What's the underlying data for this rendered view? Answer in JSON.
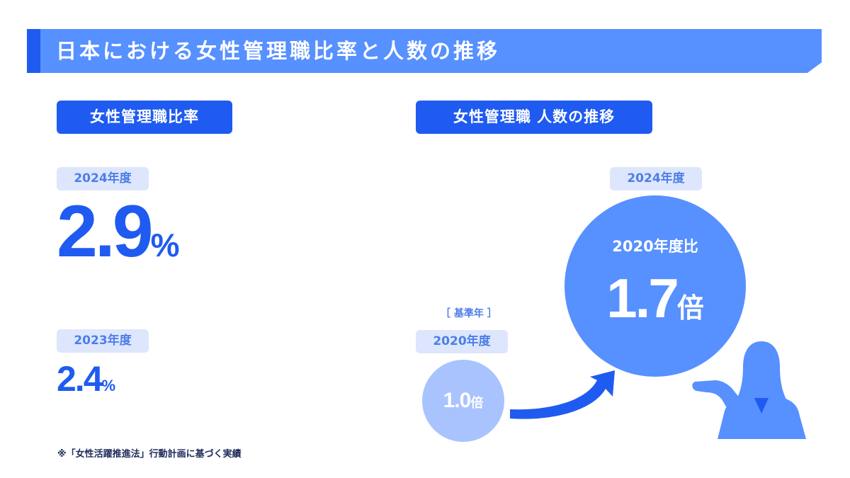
{
  "header": {
    "title": "日本における女性管理職比率と人数の推移"
  },
  "left_panel": {
    "heading": "女性管理職比率",
    "current": {
      "year_label": "2024年度",
      "value": "2.9",
      "unit": "%"
    },
    "previous": {
      "year_label": "2023年度",
      "value": "2.4",
      "unit": "%"
    }
  },
  "right_panel": {
    "heading": "女性管理職 人数の推移",
    "base": {
      "tag": "［ 基準年 ］",
      "year_label": "2020年度",
      "value": "1.0",
      "unit": "倍"
    },
    "current": {
      "year_label": "2024年度",
      "compare_label": "2020年度比",
      "value": "1.7",
      "unit": "倍"
    }
  },
  "footnote": "※「女性活躍推進法」行動計画に基づく実績",
  "colors": {
    "primary": "#1f5bf0",
    "banner": "#5790ff",
    "pill_bg": "#dde6fc",
    "base_circle": "#a9c3ff",
    "big_circle": "#5790ff"
  }
}
